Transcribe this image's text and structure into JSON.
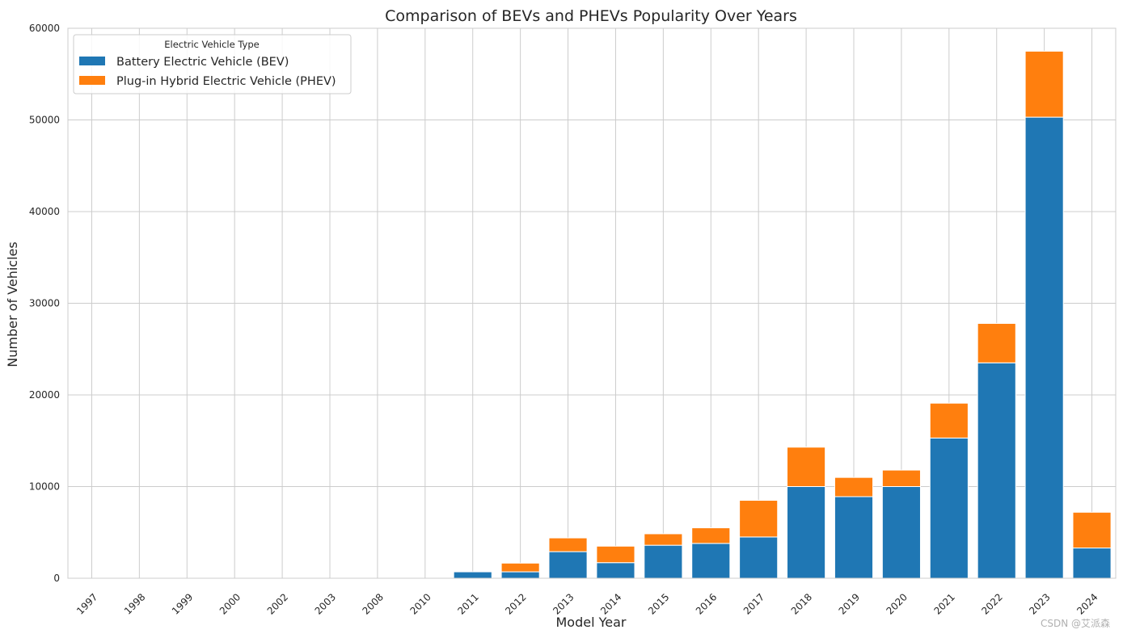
{
  "chart_data": {
    "type": "bar",
    "stacked": true,
    "title": "Comparison of BEVs and PHEVs Popularity Over Years",
    "xlabel": "Model Year",
    "ylabel": "Number of Vehicles",
    "ylim": [
      0,
      60000
    ],
    "yticks": [
      0,
      10000,
      20000,
      30000,
      40000,
      50000,
      60000
    ],
    "grid": true,
    "categories": [
      "1997",
      "1998",
      "1999",
      "2000",
      "2002",
      "2003",
      "2008",
      "2010",
      "2011",
      "2012",
      "2013",
      "2014",
      "2015",
      "2016",
      "2017",
      "2018",
      "2019",
      "2020",
      "2021",
      "2022",
      "2023",
      "2024"
    ],
    "series": [
      {
        "name": "Battery Electric Vehicle (BEV)",
        "color": "#1f77b4",
        "values": [
          0,
          0,
          0,
          0,
          0,
          0,
          0,
          0,
          700,
          700,
          2900,
          1700,
          3600,
          3800,
          4500,
          10000,
          8900,
          10000,
          15300,
          23500,
          50300,
          3300
        ]
      },
      {
        "name": "Plug-in Hybrid Electric Vehicle (PHEV)",
        "color": "#ff7f0e",
        "values": [
          0,
          0,
          0,
          0,
          0,
          0,
          0,
          0,
          0,
          950,
          1500,
          1800,
          1250,
          1700,
          4000,
          4300,
          2100,
          1800,
          3800,
          4300,
          7200,
          3900
        ]
      }
    ],
    "legend": {
      "title": "Electric Vehicle Type",
      "placement": "top-left"
    }
  },
  "watermark": "CSDN @艾派森"
}
